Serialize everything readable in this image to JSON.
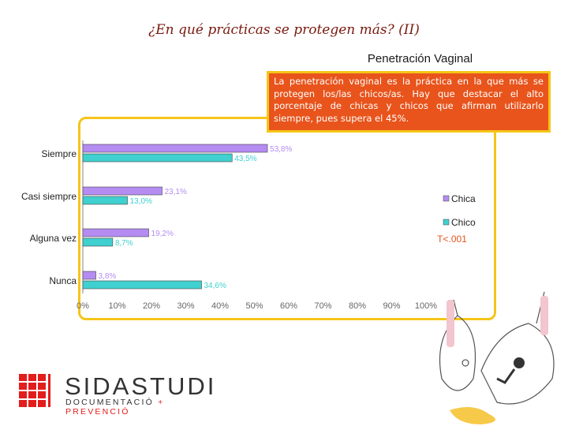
{
  "slide": {
    "title": "¿En qué prácticas se protegen más? (II)"
  },
  "note": {
    "text": "La penetración vaginal es la práctica en la que más se protegen los/las chicos/as. Hay que destacar el alto porcentaje de chicas y chicos que afirman utilizarlo siempre, pues supera el 45%."
  },
  "colors": {
    "chica": "#b48cf2",
    "chico": "#3fd0cf",
    "frame": "#f5c518",
    "accent": "#e8541c",
    "title": "#7a1a0e"
  },
  "chart_data": {
    "type": "bar",
    "orientation": "horizontal",
    "title": "Penetración Vaginal",
    "categories": [
      "Siempre",
      "Casi siempre",
      "Alguna vez",
      "Nunca"
    ],
    "series": [
      {
        "name": "Chica",
        "values": [
          53.8,
          23.1,
          19.2,
          3.8
        ],
        "labels": [
          "53,8%",
          "23,1%",
          "19,2%",
          "3,8%"
        ]
      },
      {
        "name": "Chico",
        "values": [
          43.5,
          13.0,
          8.7,
          34.6
        ],
        "labels": [
          "43,5%",
          "13,0%",
          "8,7%",
          "34,6%"
        ]
      }
    ],
    "xlim": [
      0,
      100
    ],
    "xticks": [
      "0%",
      "10%",
      "20%",
      "30%",
      "40%",
      "50%",
      "60%",
      "70%",
      "80%",
      "90%",
      "100%"
    ],
    "legend": [
      "Chica",
      "Chico"
    ],
    "annotation": "T<.001"
  },
  "logo": {
    "brand_bold": "SIDA",
    "brand_rest": "STUDI",
    "tagline_left": "DOCUMENTACIÓ ",
    "tagline_right": "+ PREVENCIÓ"
  }
}
